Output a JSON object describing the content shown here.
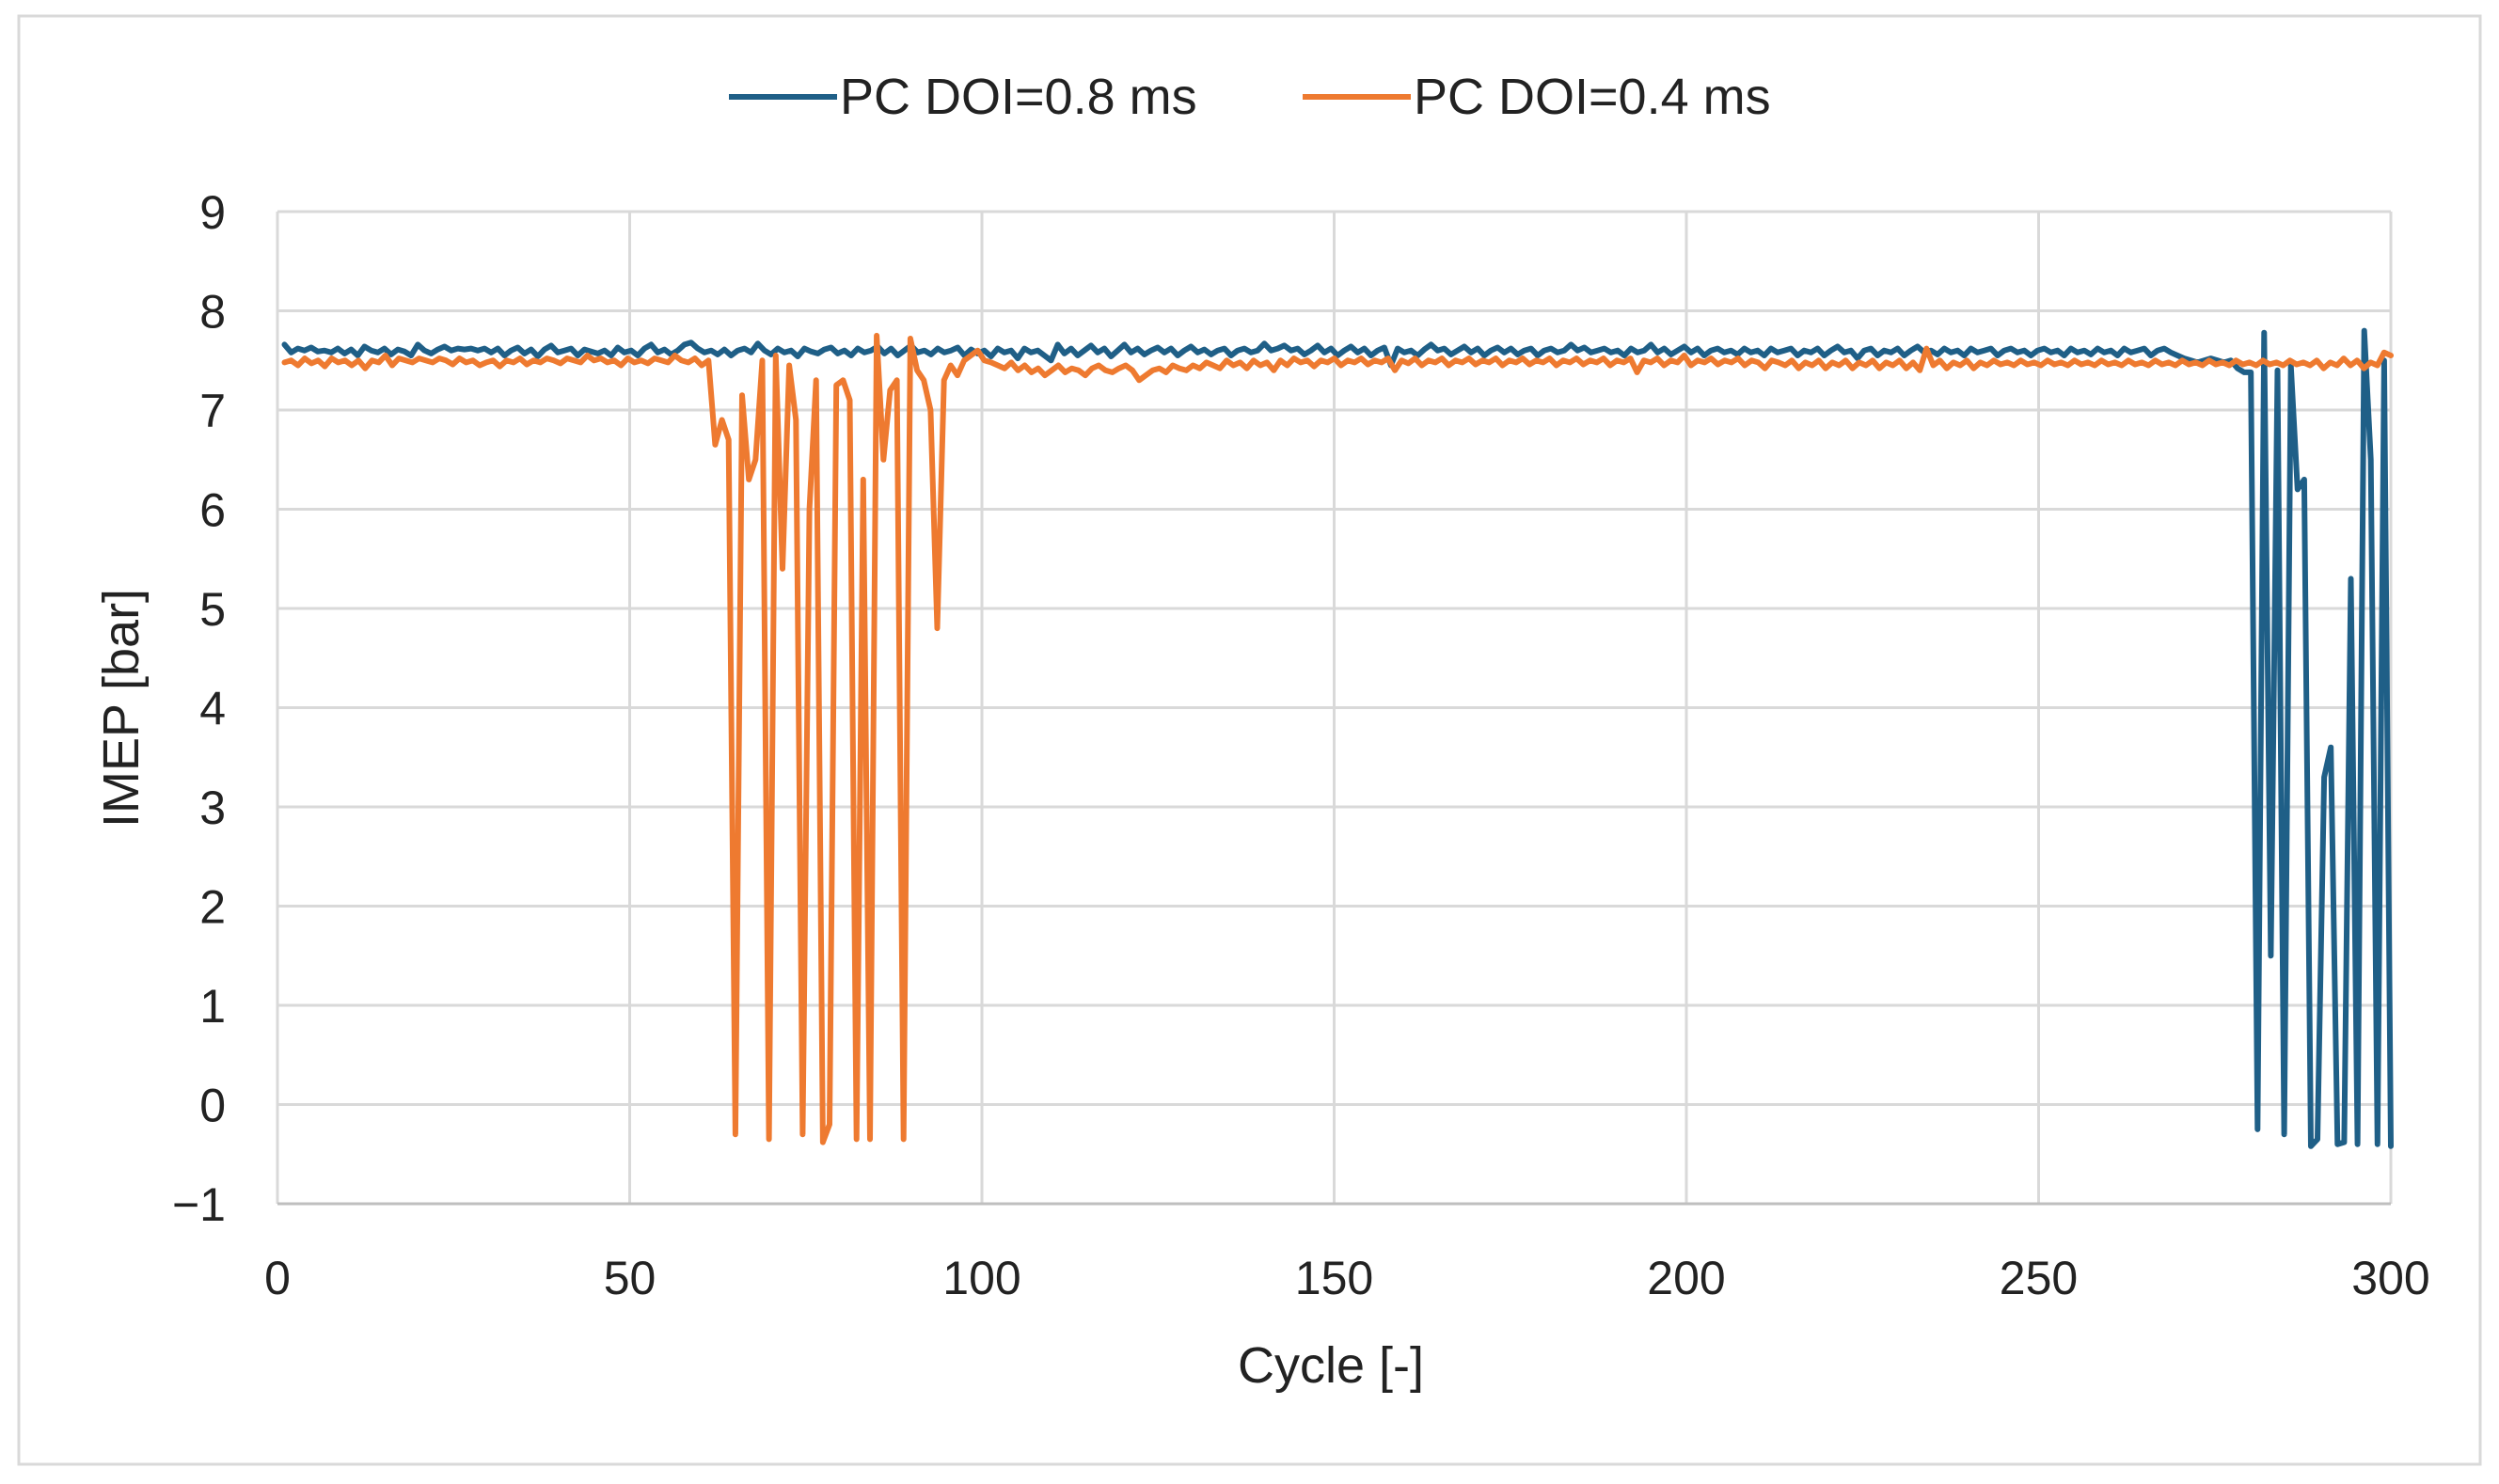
{
  "chart_data": {
    "type": "line",
    "title": "",
    "xlabel": "Cycle [-]",
    "ylabel": "IMEP [bar]",
    "xlim": [
      0,
      300
    ],
    "ylim": [
      -1,
      9
    ],
    "xticks": [
      0,
      50,
      100,
      150,
      200,
      250,
      300
    ],
    "yticks": [
      -1,
      0,
      1,
      2,
      3,
      4,
      5,
      6,
      7,
      8,
      9
    ],
    "grid": true,
    "legend_position": "top-center",
    "series": [
      {
        "name": "PC DOI=0.8 ms",
        "color": "#1f5f87",
        "values": [
          7.66,
          7.58,
          7.62,
          7.6,
          7.63,
          7.59,
          7.6,
          7.58,
          7.62,
          7.57,
          7.61,
          7.55,
          7.64,
          7.6,
          7.58,
          7.62,
          7.56,
          7.61,
          7.59,
          7.55,
          7.66,
          7.6,
          7.57,
          7.61,
          7.64,
          7.6,
          7.62,
          7.61,
          7.62,
          7.6,
          7.62,
          7.58,
          7.62,
          7.55,
          7.6,
          7.63,
          7.57,
          7.61,
          7.54,
          7.61,
          7.65,
          7.58,
          7.6,
          7.62,
          7.55,
          7.61,
          7.59,
          7.57,
          7.6,
          7.55,
          7.63,
          7.58,
          7.6,
          7.55,
          7.62,
          7.66,
          7.58,
          7.61,
          7.56,
          7.6,
          7.66,
          7.68,
          7.62,
          7.58,
          7.6,
          7.56,
          7.61,
          7.55,
          7.6,
          7.62,
          7.58,
          7.67,
          7.6,
          7.56,
          7.62,
          7.58,
          7.6,
          7.54,
          7.62,
          7.59,
          7.57,
          7.61,
          7.63,
          7.57,
          7.6,
          7.55,
          7.62,
          7.58,
          7.6,
          7.64,
          7.57,
          7.62,
          7.55,
          7.6,
          7.65,
          7.58,
          7.6,
          7.56,
          7.62,
          7.58,
          7.6,
          7.63,
          7.55,
          7.61,
          7.57,
          7.6,
          7.54,
          7.62,
          7.58,
          7.6,
          7.52,
          7.62,
          7.58,
          7.6,
          7.55,
          7.5,
          7.66,
          7.57,
          7.62,
          7.55,
          7.6,
          7.65,
          7.58,
          7.62,
          7.54,
          7.6,
          7.66,
          7.58,
          7.62,
          7.56,
          7.6,
          7.63,
          7.58,
          7.62,
          7.55,
          7.6,
          7.64,
          7.58,
          7.61,
          7.56,
          7.6,
          7.62,
          7.55,
          7.6,
          7.62,
          7.58,
          7.6,
          7.67,
          7.6,
          7.62,
          7.65,
          7.6,
          7.62,
          7.56,
          7.6,
          7.65,
          7.58,
          7.62,
          7.55,
          7.6,
          7.64,
          7.58,
          7.62,
          7.55,
          7.6,
          7.63,
          7.45,
          7.62,
          7.58,
          7.6,
          7.55,
          7.61,
          7.66,
          7.6,
          7.62,
          7.56,
          7.6,
          7.64,
          7.58,
          7.62,
          7.55,
          7.6,
          7.63,
          7.58,
          7.62,
          7.56,
          7.6,
          7.62,
          7.55,
          7.6,
          7.62,
          7.58,
          7.6,
          7.66,
          7.6,
          7.63,
          7.58,
          7.6,
          7.62,
          7.58,
          7.6,
          7.55,
          7.62,
          7.58,
          7.6,
          7.66,
          7.58,
          7.62,
          7.56,
          7.6,
          7.64,
          7.58,
          7.62,
          7.55,
          7.6,
          7.62,
          7.58,
          7.6,
          7.56,
          7.62,
          7.58,
          7.6,
          7.55,
          7.62,
          7.58,
          7.6,
          7.62,
          7.55,
          7.6,
          7.58,
          7.62,
          7.55,
          7.6,
          7.64,
          7.58,
          7.6,
          7.52,
          7.6,
          7.62,
          7.55,
          7.6,
          7.58,
          7.62,
          7.55,
          7.6,
          7.64,
          7.58,
          7.6,
          7.56,
          7.62,
          7.58,
          7.6,
          7.55,
          7.62,
          7.58,
          7.6,
          7.62,
          7.55,
          7.6,
          7.62,
          7.58,
          7.6,
          7.55,
          7.6,
          7.62,
          7.58,
          7.6,
          7.55,
          7.62,
          7.58,
          7.6,
          7.56,
          7.62,
          7.58,
          7.6,
          7.55,
          7.62,
          7.58,
          7.6,
          7.62,
          7.55,
          7.6,
          7.62,
          7.58,
          7.55,
          7.52,
          7.5,
          7.48,
          7.5,
          7.52,
          7.5,
          7.48,
          7.5,
          7.42,
          7.38,
          7.38,
          -0.25,
          7.78,
          1.5,
          7.4,
          -0.3,
          7.45,
          6.2,
          6.3,
          -0.42,
          -0.35,
          3.3,
          3.6,
          -0.4,
          -0.38,
          5.3,
          -0.4,
          7.8,
          6.5,
          -0.4,
          7.5,
          -0.42
        ]
      },
      {
        "name": "PC DOI=0.4 ms",
        "color": "#ee7a30",
        "values": [
          7.48,
          7.5,
          7.45,
          7.52,
          7.47,
          7.5,
          7.44,
          7.52,
          7.48,
          7.5,
          7.45,
          7.5,
          7.42,
          7.5,
          7.48,
          7.55,
          7.45,
          7.52,
          7.5,
          7.48,
          7.52,
          7.5,
          7.48,
          7.52,
          7.5,
          7.46,
          7.52,
          7.48,
          7.5,
          7.45,
          7.48,
          7.5,
          7.44,
          7.5,
          7.48,
          7.52,
          7.46,
          7.5,
          7.48,
          7.52,
          7.5,
          7.47,
          7.52,
          7.5,
          7.48,
          7.55,
          7.5,
          7.52,
          7.48,
          7.5,
          7.45,
          7.52,
          7.48,
          7.5,
          7.47,
          7.52,
          7.5,
          7.48,
          7.55,
          7.5,
          7.48,
          7.52,
          7.45,
          7.5,
          6.65,
          6.9,
          6.7,
          -0.3,
          7.15,
          6.3,
          6.5,
          7.5,
          -0.35,
          7.55,
          5.4,
          7.45,
          6.9,
          -0.3,
          6.0,
          7.3,
          -0.38,
          -0.2,
          7.25,
          7.3,
          7.1,
          -0.35,
          6.3,
          -0.35,
          7.75,
          6.5,
          7.2,
          7.3,
          -0.35,
          7.72,
          7.4,
          7.3,
          7.0,
          4.8,
          7.3,
          7.45,
          7.35,
          7.5,
          7.55,
          7.6,
          7.5,
          7.48,
          7.45,
          7.42,
          7.48,
          7.4,
          7.45,
          7.38,
          7.42,
          7.35,
          7.4,
          7.45,
          7.38,
          7.42,
          7.4,
          7.35,
          7.42,
          7.45,
          7.4,
          7.38,
          7.42,
          7.45,
          7.4,
          7.3,
          7.35,
          7.4,
          7.42,
          7.38,
          7.45,
          7.42,
          7.4,
          7.45,
          7.42,
          7.48,
          7.45,
          7.42,
          7.5,
          7.45,
          7.48,
          7.42,
          7.5,
          7.45,
          7.48,
          7.4,
          7.5,
          7.45,
          7.52,
          7.48,
          7.5,
          7.44,
          7.5,
          7.48,
          7.52,
          7.45,
          7.5,
          7.48,
          7.52,
          7.46,
          7.5,
          7.48,
          7.52,
          7.4,
          7.5,
          7.47,
          7.52,
          7.45,
          7.5,
          7.48,
          7.52,
          7.45,
          7.5,
          7.48,
          7.52,
          7.46,
          7.5,
          7.48,
          7.52,
          7.45,
          7.5,
          7.48,
          7.52,
          7.46,
          7.5,
          7.48,
          7.52,
          7.45,
          7.5,
          7.48,
          7.52,
          7.46,
          7.5,
          7.48,
          7.52,
          7.45,
          7.5,
          7.48,
          7.52,
          7.38,
          7.5,
          7.48,
          7.52,
          7.45,
          7.5,
          7.48,
          7.55,
          7.45,
          7.5,
          7.48,
          7.52,
          7.46,
          7.5,
          7.48,
          7.52,
          7.45,
          7.5,
          7.48,
          7.42,
          7.5,
          7.48,
          7.45,
          7.5,
          7.42,
          7.48,
          7.45,
          7.5,
          7.42,
          7.48,
          7.45,
          7.5,
          7.42,
          7.48,
          7.45,
          7.5,
          7.42,
          7.48,
          7.45,
          7.5,
          7.42,
          7.48,
          7.4,
          7.62,
          7.45,
          7.5,
          7.42,
          7.48,
          7.45,
          7.5,
          7.42,
          7.48,
          7.45,
          7.5,
          7.46,
          7.48,
          7.45,
          7.5,
          7.46,
          7.48,
          7.45,
          7.5,
          7.46,
          7.48,
          7.45,
          7.5,
          7.46,
          7.48,
          7.45,
          7.5,
          7.46,
          7.48,
          7.45,
          7.5,
          7.46,
          7.48,
          7.45,
          7.5,
          7.46,
          7.48,
          7.45,
          7.5,
          7.46,
          7.48,
          7.45,
          7.5,
          7.46,
          7.48,
          7.45,
          7.5,
          7.46,
          7.48,
          7.45,
          7.5,
          7.46,
          7.48,
          7.45,
          7.5,
          7.46,
          7.48,
          7.45,
          7.5,
          7.42,
          7.48,
          7.45,
          7.52,
          7.45,
          7.5,
          7.42,
          7.48,
          7.45,
          7.58,
          7.55
        ]
      }
    ]
  }
}
